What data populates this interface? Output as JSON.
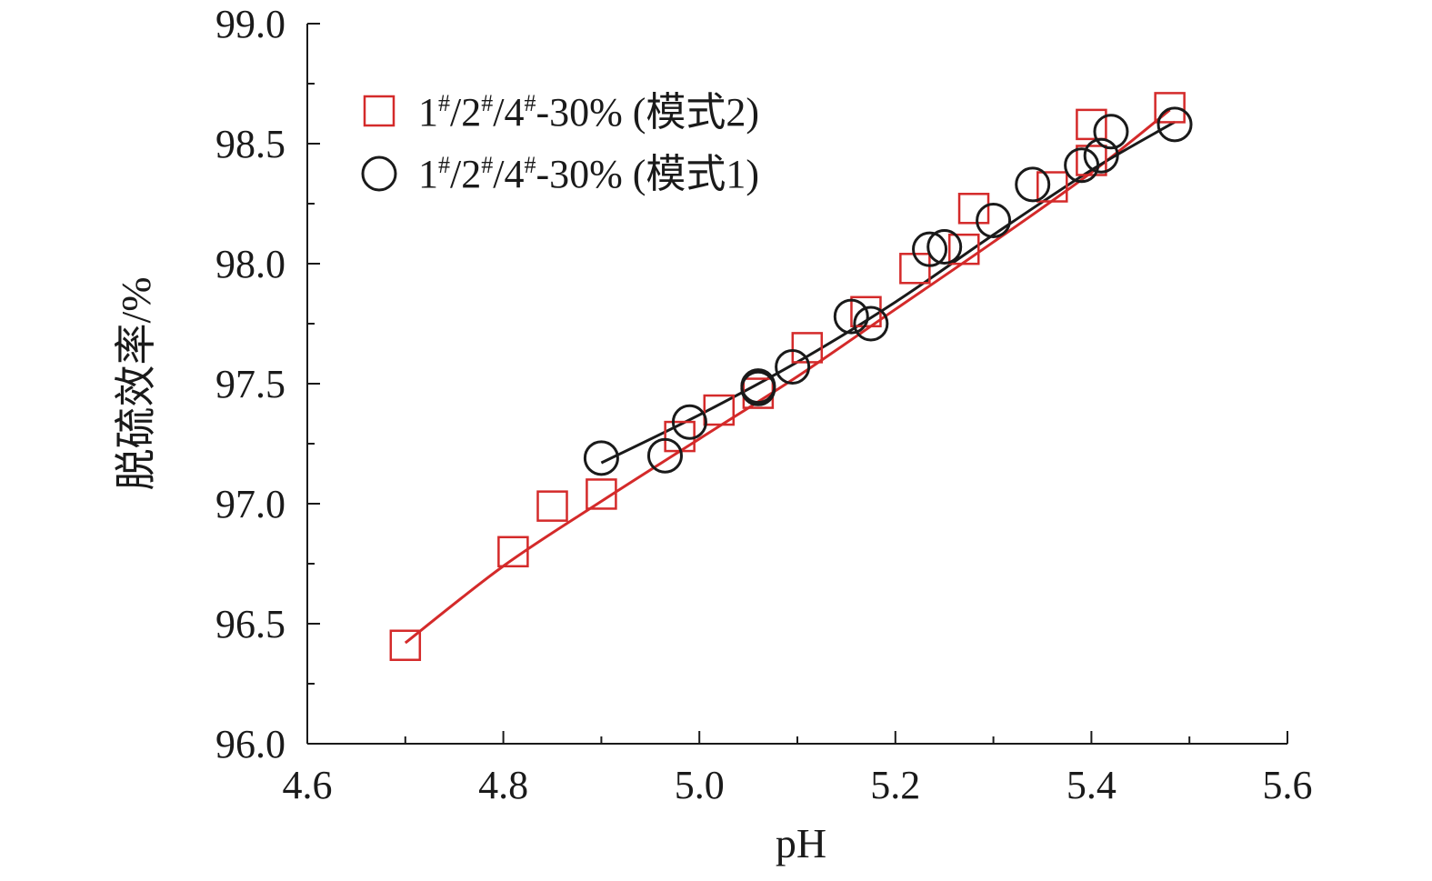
{
  "chart_data": {
    "type": "scatter",
    "xlabel": "pH",
    "ylabel": "脱硫效率/%",
    "xlim": [
      4.6,
      5.6
    ],
    "ylim": [
      96.0,
      99.0
    ],
    "xticks": [
      "4.6",
      "4.8",
      "5.0",
      "5.2",
      "5.4",
      "5.6"
    ],
    "yticks": [
      "96.0",
      "96.5",
      "97.0",
      "97.5",
      "98.0",
      "98.5",
      "99.0"
    ],
    "grid": false,
    "legend_position": "top-left",
    "series": [
      {
        "name": "1#/2#/4#-30% (模式2)",
        "legend": {
          "pre": "1",
          "s1": "#",
          "m1": "/2",
          "s2": "#",
          "m2": "/4",
          "s3": "#",
          "post": "-30% (模式2)"
        },
        "marker": "square",
        "color": "#d42a2a",
        "points": [
          [
            4.7,
            96.41
          ],
          [
            4.81,
            96.8
          ],
          [
            4.85,
            96.99
          ],
          [
            4.9,
            97.04
          ],
          [
            4.98,
            97.28
          ],
          [
            5.02,
            97.39
          ],
          [
            5.06,
            97.46
          ],
          [
            5.11,
            97.65
          ],
          [
            5.17,
            97.8
          ],
          [
            5.22,
            97.98
          ],
          [
            5.27,
            98.06
          ],
          [
            5.28,
            98.23
          ],
          [
            5.36,
            98.32
          ],
          [
            5.4,
            98.43
          ],
          [
            5.4,
            98.58
          ],
          [
            5.48,
            98.65
          ]
        ],
        "fit": [
          [
            4.7,
            96.42
          ],
          [
            4.8,
            96.74
          ],
          [
            4.9,
            97.01
          ],
          [
            5.0,
            97.27
          ],
          [
            5.1,
            97.53
          ],
          [
            5.2,
            97.81
          ],
          [
            5.3,
            98.09
          ],
          [
            5.4,
            98.38
          ],
          [
            5.48,
            98.64
          ]
        ]
      },
      {
        "name": "1#/2#/4#-30% (模式1)",
        "legend": {
          "pre": "1",
          "s1": "#",
          "m1": "/2",
          "s2": "#",
          "m2": "/4",
          "s3": "#",
          "post": "-30% (模式1)"
        },
        "marker": "circle",
        "color": "#1a1a1a",
        "points": [
          [
            4.9,
            97.19
          ],
          [
            4.965,
            97.2
          ],
          [
            4.99,
            97.34
          ],
          [
            5.06,
            97.48
          ],
          [
            5.06,
            97.49
          ],
          [
            5.095,
            97.57
          ],
          [
            5.155,
            97.78
          ],
          [
            5.175,
            97.75
          ],
          [
            5.235,
            98.06
          ],
          [
            5.25,
            98.07
          ],
          [
            5.3,
            98.18
          ],
          [
            5.34,
            98.33
          ],
          [
            5.39,
            98.41
          ],
          [
            5.41,
            98.45
          ],
          [
            5.42,
            98.55
          ],
          [
            5.485,
            98.58
          ]
        ],
        "fit": [
          [
            4.9,
            97.17
          ],
          [
            5.0,
            97.37
          ],
          [
            5.1,
            97.59
          ],
          [
            5.2,
            97.84
          ],
          [
            5.3,
            98.12
          ],
          [
            5.4,
            98.39
          ],
          [
            5.485,
            98.59
          ]
        ]
      }
    ]
  }
}
